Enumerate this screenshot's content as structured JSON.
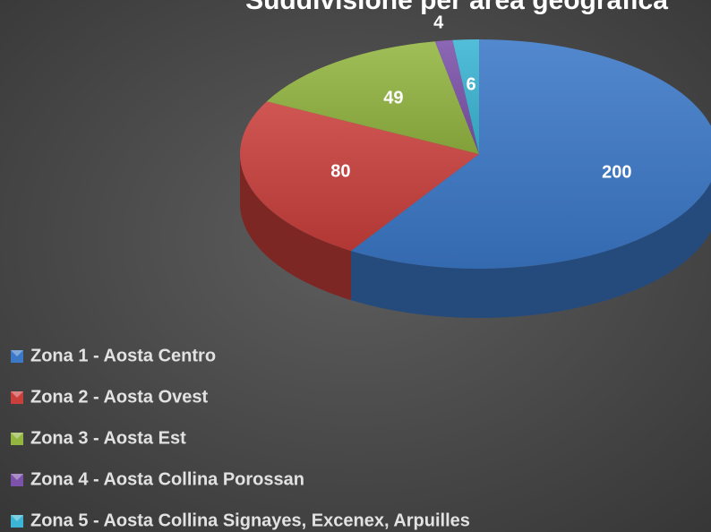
{
  "chart_data": {
    "type": "pie3d",
    "title": "Suddivisione per area geografica",
    "categories": [
      "Zona 1 - Aosta Centro",
      "Zona 2 - Aosta Ovest",
      "Zona 3 - Aosta Est",
      "Zona 4 - Aosta Collina Porossan",
      "Zona 5 - Aosta Collina Signayes, Excenex, Arpuilles"
    ],
    "values": [
      200,
      80,
      49,
      4,
      6
    ],
    "colors": [
      "#3b78c8",
      "#c93f3c",
      "#93b641",
      "#7c52aa",
      "#3bb5d3"
    ],
    "legend": "bottom-left"
  }
}
